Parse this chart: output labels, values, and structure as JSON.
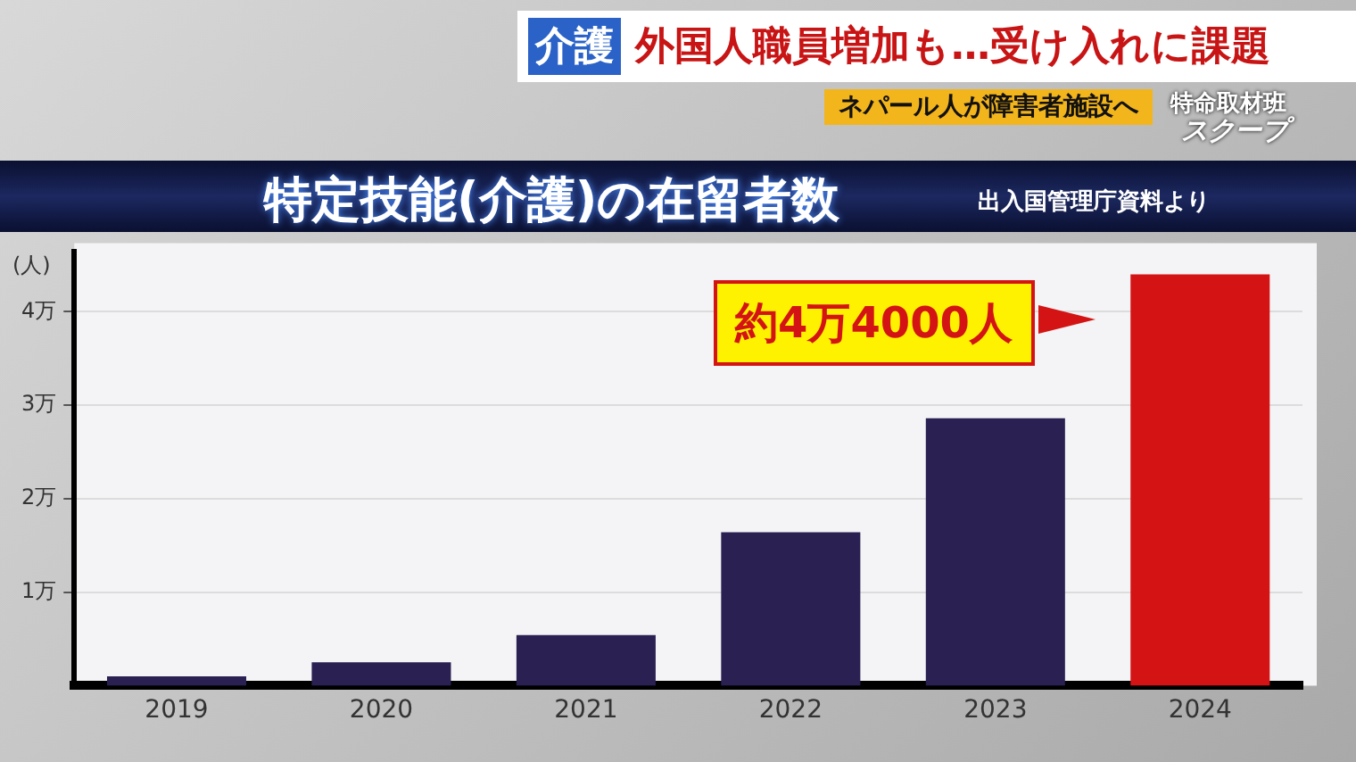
{
  "chart_data": {
    "type": "bar",
    "title": "特定技能(介護)の在留者数",
    "ylabel": "(人)",
    "annotations": [
      "出入国管理庁資料より",
      "介護",
      "外国人職員増加も…受け入れに課題",
      "ネパール人が障害者施設へ",
      "特命取材班",
      "スクープ",
      "約4万4000人"
    ],
    "categories": [
      "2019",
      "2020",
      "2021",
      "2022",
      "2023",
      "2024"
    ],
    "values": [
      0.1,
      0.25,
      0.54,
      1.64,
      2.86,
      4.4
    ],
    "colors": [
      "#2a2052",
      "#2a2052",
      "#2a2052",
      "#2a2052",
      "#2a2052",
      "#d41414"
    ],
    "ylim": [
      0,
      4.64
    ],
    "yticks": [
      {
        "value": 1,
        "label": "1万"
      },
      {
        "value": 2,
        "label": "2万"
      },
      {
        "value": 3,
        "label": "3万"
      },
      {
        "value": 4,
        "label": "4万"
      }
    ],
    "grid": "y",
    "legend": false
  }
}
